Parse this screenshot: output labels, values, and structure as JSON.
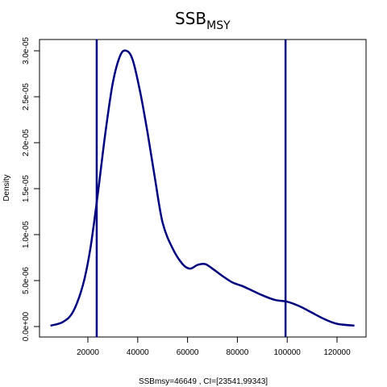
{
  "chart_data": {
    "type": "line",
    "title": "SSB",
    "title_subscript": "MSY",
    "xlabel": "SSBmsy=46649 , CI=[23541,99343]",
    "ylabel": "Density",
    "xlim": [
      5000,
      127000
    ],
    "ylim": [
      0,
      3.2e-05
    ],
    "x_ticks": [
      20000,
      40000,
      60000,
      80000,
      100000,
      120000
    ],
    "x_tick_labels": [
      "20000",
      "40000",
      "60000",
      "80000",
      "100000",
      "120000"
    ],
    "y_ticks": [
      0,
      5e-06,
      1e-05,
      1.5e-05,
      2e-05,
      2.5e-05,
      3e-05
    ],
    "y_tick_labels": [
      "0.0e+00",
      "5.0e-06",
      "1.0e-05",
      "1.5e-05",
      "2.0e-05",
      "2.5e-05",
      "3.0e-05"
    ],
    "grid": false,
    "series": [
      {
        "color": "#00007f",
        "x": [
          5000,
          10000,
          14000,
          18000,
          21000,
          24000,
          27000,
          30000,
          33000,
          35500,
          38000,
          41000,
          44000,
          47000,
          50000,
          54000,
          58000,
          61000,
          64000,
          67000,
          70000,
          74000,
          78000,
          82000,
          86000,
          90000,
          95000,
          100000,
          105000,
          110000,
          115000,
          120000,
          127000
        ],
        "y": [
          1e-07,
          5e-07,
          1.6e-06,
          4.5e-06,
          8.5e-06,
          1.45e-05,
          2.1e-05,
          2.65e-05,
          2.95e-05,
          3e-05,
          2.9e-05,
          2.55e-05,
          2.1e-05,
          1.6e-05,
          1.13e-05,
          8.5e-06,
          6.8e-06,
          6.3e-06,
          6.7e-06,
          6.8e-06,
          6.3e-06,
          5.5e-06,
          4.8e-06,
          4.4e-06,
          3.9e-06,
          3.4e-06,
          2.9e-06,
          2.7e-06,
          2.2e-06,
          1.5e-06,
          8e-07,
          3e-07,
          1e-07
        ]
      }
    ],
    "vertical_lines": [
      23541,
      99343
    ],
    "line_color": "#00007f"
  }
}
